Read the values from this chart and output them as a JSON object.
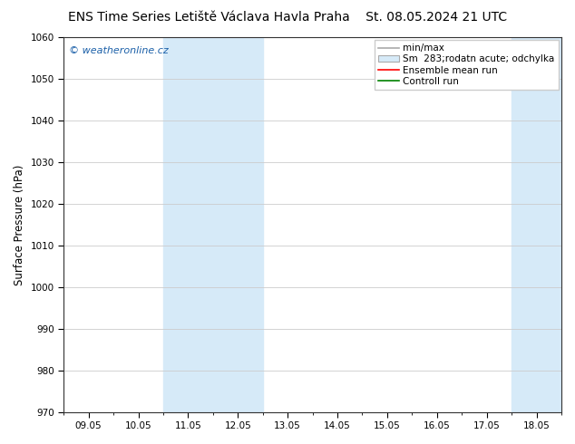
{
  "title_left": "ENS Time Series Letiště Václava Havla Praha",
  "title_right": "St. 08.05.2024 21 UTC",
  "ylabel": "Surface Pressure (hPa)",
  "watermark": "© weatheronline.cz",
  "ylim": [
    970,
    1060
  ],
  "yticks": [
    970,
    980,
    990,
    1000,
    1010,
    1020,
    1030,
    1040,
    1050,
    1060
  ],
  "xtick_labels": [
    "09.05",
    "10.05",
    "11.05",
    "12.05",
    "13.05",
    "14.05",
    "15.05",
    "16.05",
    "17.05",
    "18.05"
  ],
  "xtick_positions": [
    0,
    1,
    2,
    3,
    4,
    5,
    6,
    7,
    8,
    9
  ],
  "xlim": [
    -0.5,
    9.5
  ],
  "shade_bands": [
    {
      "x_start": 1.5,
      "x_end": 2.5,
      "color": "#d6eaf8"
    },
    {
      "x_start": 2.5,
      "x_end": 3.5,
      "color": "#d6eaf8"
    },
    {
      "x_start": 8.5,
      "x_end": 9.5,
      "color": "#d6eaf8"
    }
  ],
  "legend_entries": [
    {
      "label": "min/max",
      "color": "#aaaaaa",
      "lw": 1.2,
      "type": "line"
    },
    {
      "label": "Sm  283;rodatn acute; odchylka",
      "color": "#d6eaf8",
      "edge_color": "#aaaaaa",
      "type": "patch"
    },
    {
      "label": "Ensemble mean run",
      "color": "red",
      "lw": 1.2,
      "type": "line"
    },
    {
      "label": "Controll run",
      "color": "green",
      "lw": 1.2,
      "type": "line"
    }
  ],
  "background_color": "#ffffff",
  "plot_bg_color": "#ffffff",
  "grid_color": "#cccccc",
  "title_fontsize": 10,
  "tick_fontsize": 7.5,
  "ylabel_fontsize": 8.5,
  "legend_fontsize": 7.5
}
